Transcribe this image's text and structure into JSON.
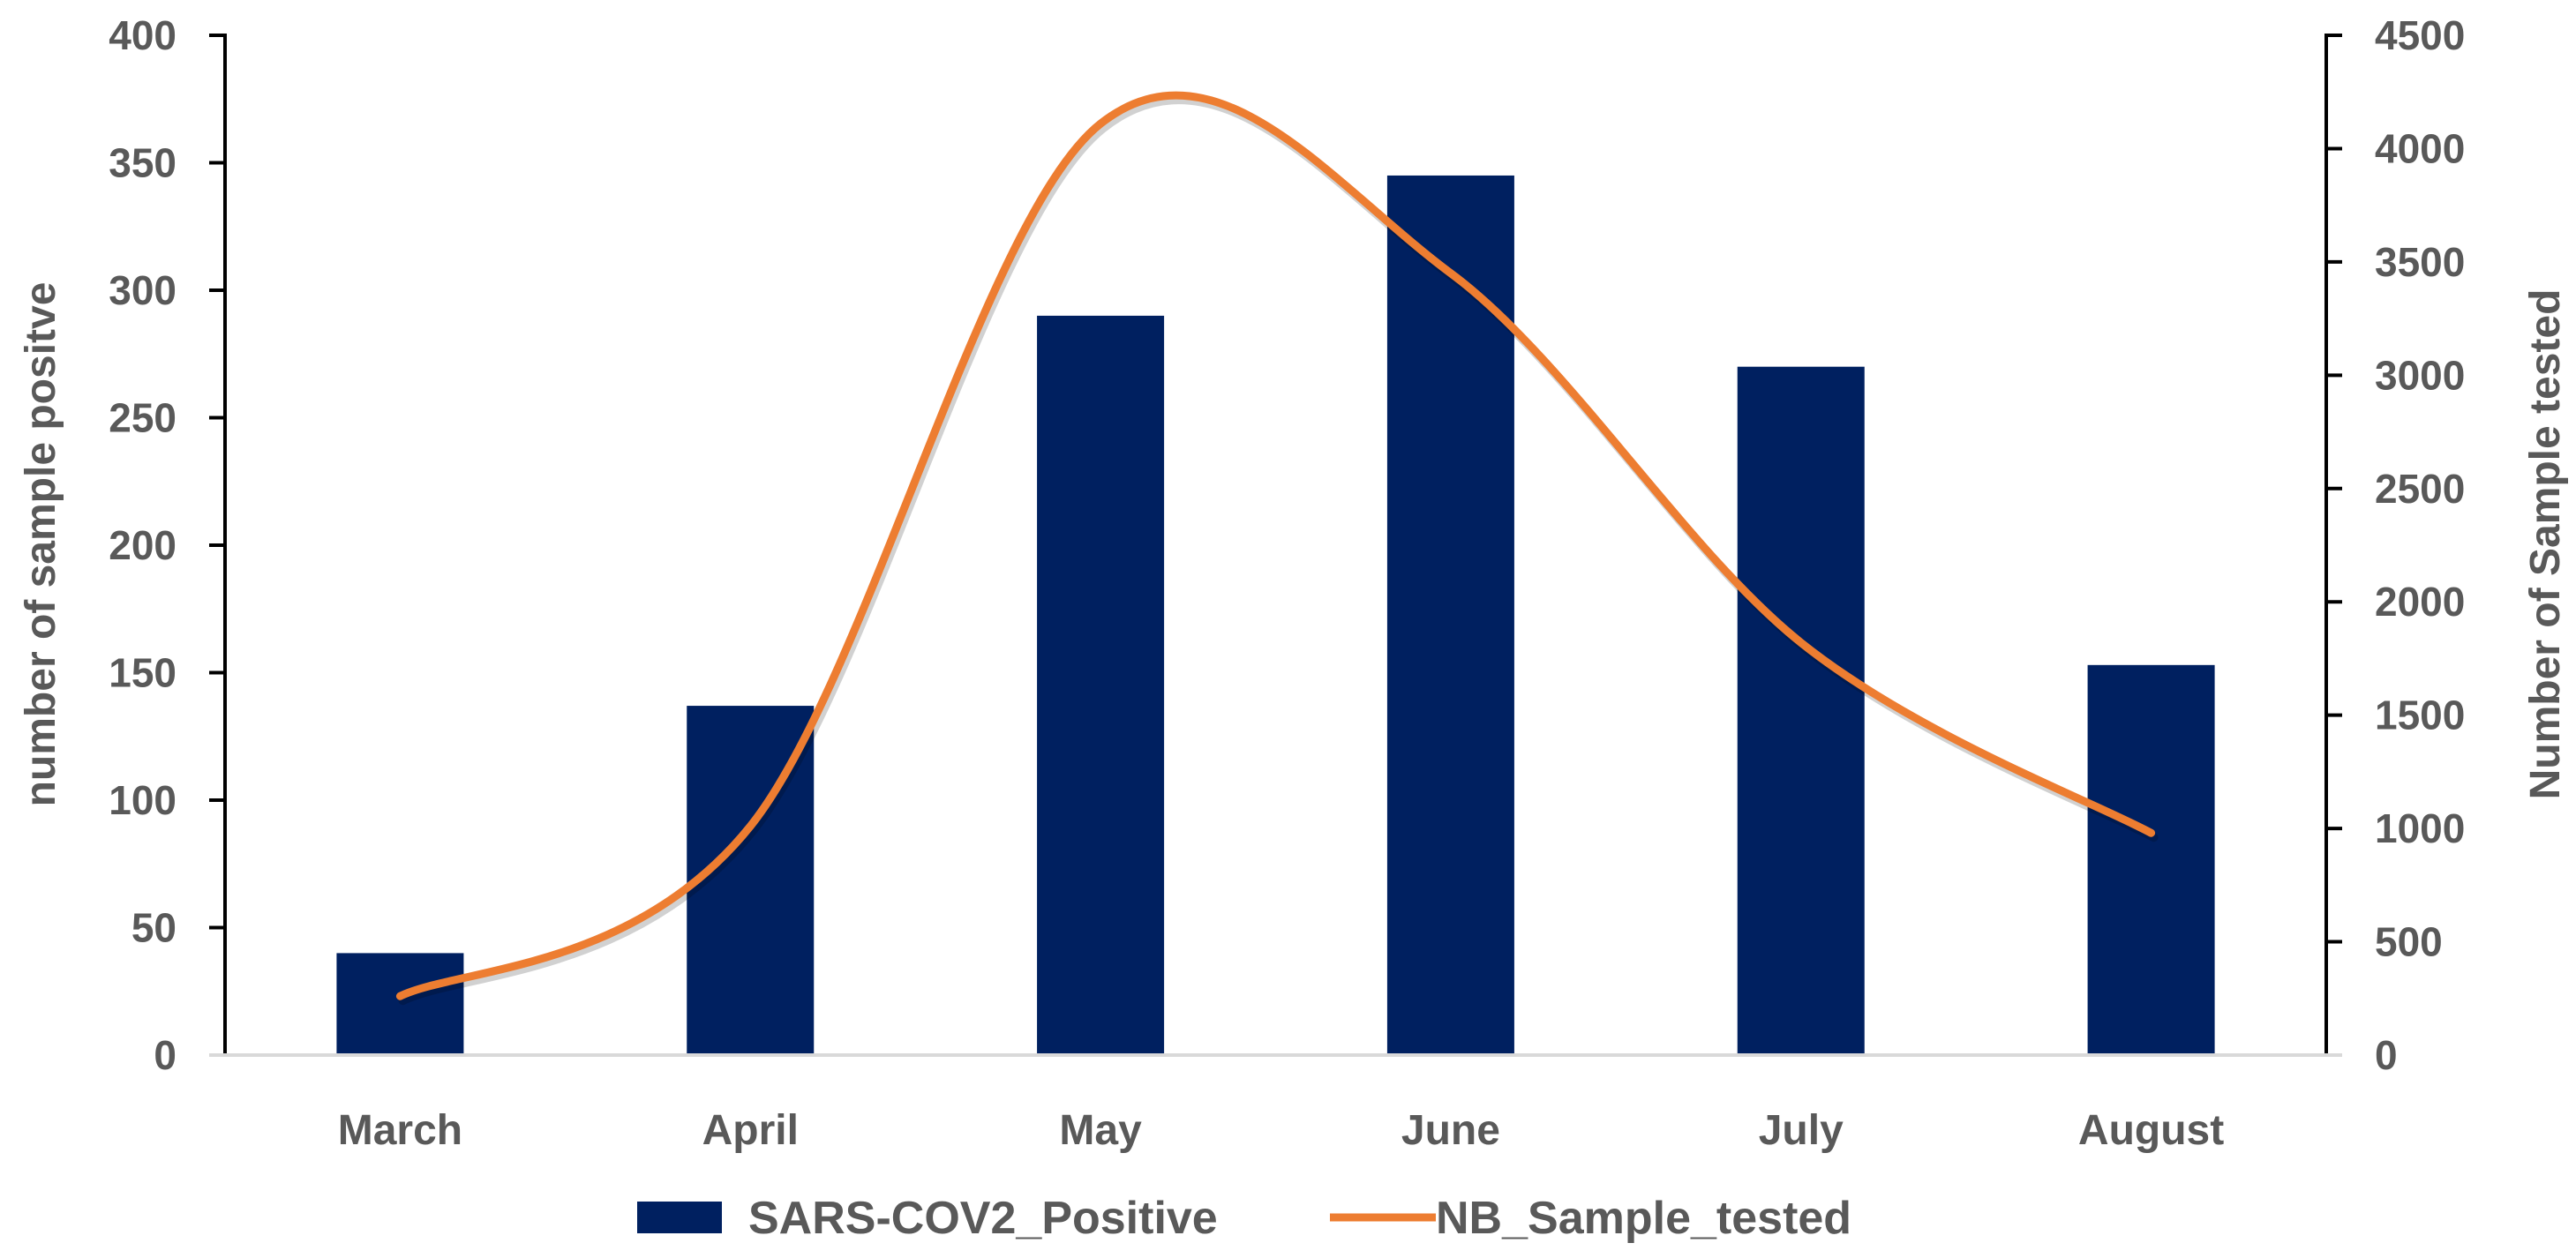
{
  "chart_data": {
    "type": "bar",
    "categories": [
      "March",
      "April",
      "May",
      "June",
      "July",
      "August"
    ],
    "series": [
      {
        "name": "SARS-COV2_Positive",
        "type": "bar",
        "axis": "left",
        "color": "#002060",
        "values": [
          40,
          137,
          290,
          345,
          270,
          153
        ]
      },
      {
        "name": "NB_Sample_tested",
        "type": "line",
        "smooth": true,
        "axis": "right",
        "color": "#ED7D31",
        "values": [
          260,
          1010,
          4110,
          3450,
          1820,
          980
        ]
      }
    ],
    "ylabel": "number of sample positve",
    "y2label": "Number of Sample tested",
    "ylim": [
      0,
      400
    ],
    "y2lim": [
      0,
      4500
    ],
    "yticks": [
      "0",
      "50",
      "100",
      "150",
      "200",
      "250",
      "300",
      "350",
      "400"
    ],
    "y2ticks": [
      "0",
      "500",
      "1000",
      "1500",
      "2000",
      "2500",
      "3000",
      "3500",
      "4000",
      "4500"
    ],
    "grid": false,
    "legend": "bottom"
  }
}
